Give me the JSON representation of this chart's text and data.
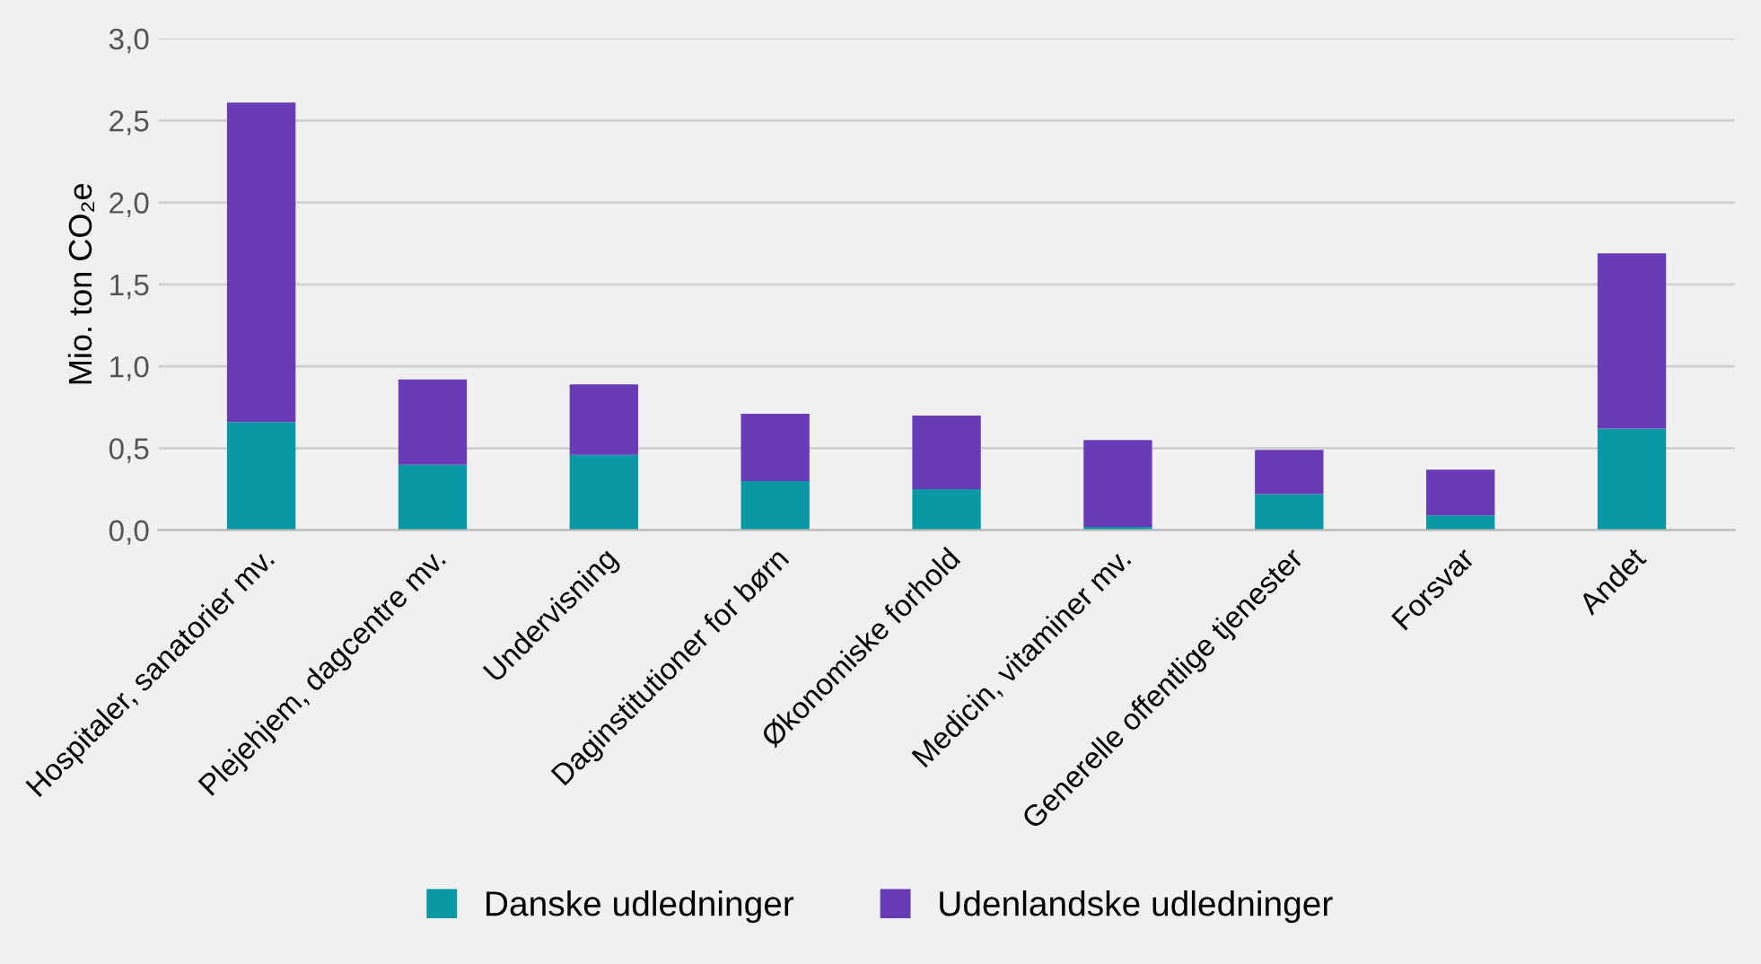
{
  "chart_data": {
    "type": "bar",
    "stacked": true,
    "ylabel": "Mio. ton CO₂e",
    "categories": [
      "Hospitaler, sanatorier mv.",
      "Plejehjem, dagcentre mv.",
      "Undervisning",
      "Daginstitutioner for børn",
      "Økonomiske forhold",
      "Medicin, vitaminer mv.",
      "Generelle offentlige tjenester",
      "Forsvar",
      "Andet"
    ],
    "series": [
      {
        "name": "Danske udledninger",
        "color": "#0a98a4",
        "values": [
          0.66,
          0.4,
          0.46,
          0.3,
          0.25,
          0.02,
          0.22,
          0.09,
          0.62
        ]
      },
      {
        "name": "Udenlandske udledninger",
        "color": "#6a3bb6",
        "values": [
          1.95,
          0.52,
          0.43,
          0.41,
          0.45,
          0.53,
          0.27,
          0.28,
          1.07
        ]
      }
    ],
    "ylim": [
      0,
      3
    ],
    "yticks": [
      {
        "value": 0,
        "label": "0,0"
      },
      {
        "value": 0.5,
        "label": "0,5"
      },
      {
        "value": 1,
        "label": "1,0"
      },
      {
        "value": 1.5,
        "label": "1,5"
      },
      {
        "value": 2,
        "label": "2,0"
      },
      {
        "value": 2.5,
        "label": "2,5"
      },
      {
        "value": 3,
        "label": "3,0"
      }
    ],
    "grid": "y",
    "legend": "bottom"
  }
}
